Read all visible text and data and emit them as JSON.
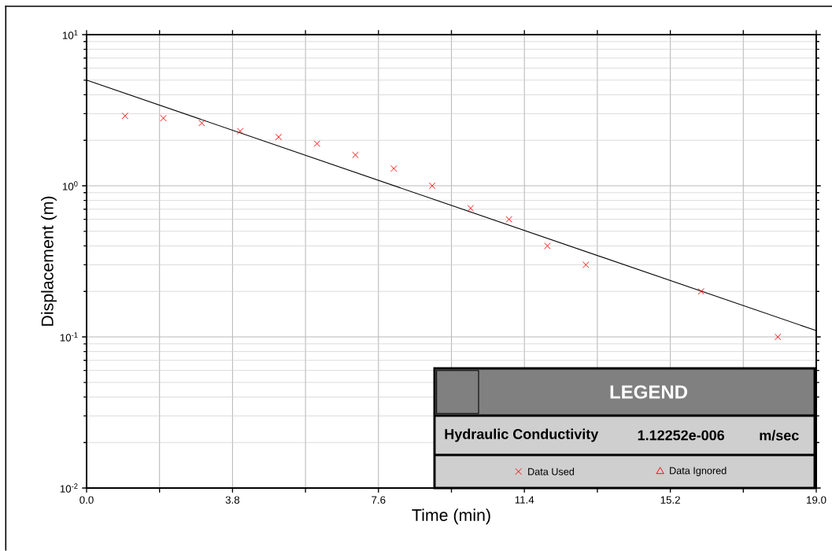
{
  "chart_data": {
    "type": "scatter",
    "xlabel": "Time (min)",
    "ylabel": "Displacement (m)",
    "legend_title": "LEGEND",
    "annotations": [
      "Hydraulic Conductivity",
      "1.12252e-006",
      "m/sec"
    ],
    "log": "y",
    "grid": true,
    "legend": "bottom right",
    "xlim": [
      0,
      19
    ],
    "ylim": [
      0.01,
      10
    ],
    "xticks": [
      {
        "value": 0,
        "label": "0.0"
      },
      {
        "value": 1.9,
        "label": null
      },
      {
        "value": 3.8,
        "label": "3.8"
      },
      {
        "value": 5.7,
        "label": null
      },
      {
        "value": 7.6,
        "label": "7.6"
      },
      {
        "value": 9.5,
        "label": null
      },
      {
        "value": 11.4,
        "label": "11.4"
      },
      {
        "value": 13.3,
        "label": null
      },
      {
        "value": 15.2,
        "label": "15.2"
      },
      {
        "value": 17.1,
        "label": null
      },
      {
        "value": 19,
        "label": "19.0"
      }
    ],
    "yticks": [
      {
        "value": 0.01,
        "label": "10$^{-2}$"
      },
      {
        "value": 0.1,
        "label": "10$^{-1}$"
      },
      {
        "value": 1,
        "label": "10$^{0}$"
      },
      {
        "value": 10,
        "label": "10$^{1}$"
      }
    ],
    "series": [
      {
        "name": "Data Used",
        "color": "#ff0000",
        "marker": "cross",
        "x": [
          1,
          2,
          3,
          4,
          5,
          6,
          7,
          8,
          9,
          10,
          11,
          12,
          13,
          16,
          18
        ],
        "values": [
          2.9,
          2.8,
          2.6,
          2.3,
          2.1,
          1.9,
          1.6,
          1.3,
          1.0,
          0.71,
          0.6,
          0.4,
          0.3,
          0.2,
          0.1
        ]
      },
      {
        "name": "Data Ignored",
        "color": "#ff0000",
        "marker": "triangle"
      },
      {
        "type": "line",
        "color": "#000000",
        "marker": "none",
        "x": [
          0,
          19
        ],
        "values": [
          5.0,
          0.11
        ]
      }
    ]
  }
}
